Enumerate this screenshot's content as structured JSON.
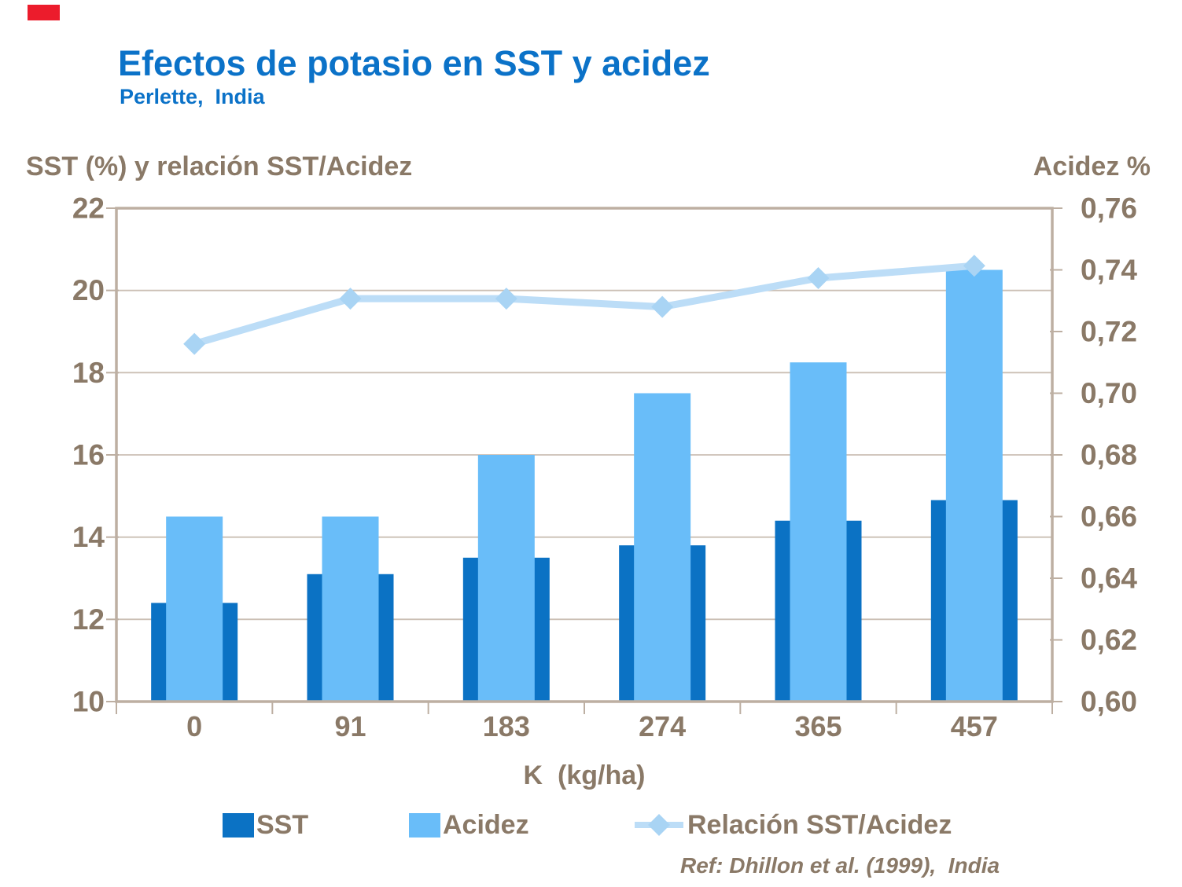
{
  "page": {
    "title": "Efectos de potasio en SST y acidez",
    "subtitle": "Perlette,  India",
    "footer": "Ref: Dhillon et al. (1999),  India"
  },
  "colors": {
    "title_blue": "#0B72C8",
    "sst_bar": "#0B72C4",
    "acidez_bar": "#69BDF9",
    "ratio_line": "#BCDDF7",
    "ratio_marker": "#A9D4F4",
    "axis_text": "#8A7967",
    "plot_border": "#BDAFA2",
    "gridline": "#CBBFB4",
    "red_mark": "#EC1C2C"
  },
  "chart_data": {
    "type": "bar",
    "subtype": "combo-bar-line-dual-axis",
    "title": "Efectos de potasio en SST y acidez",
    "categories": [
      "0",
      "91",
      "183",
      "274",
      "365",
      "457"
    ],
    "x_axis": {
      "title": "K  (kg/ha)",
      "labels": [
        "0",
        "91",
        "183",
        "274",
        "365",
        "457"
      ]
    },
    "left_axis": {
      "title": "SST (%) y relación SST/Acidez",
      "min": 10,
      "max": 22,
      "step": 2,
      "ticks": [
        {
          "label": "22",
          "value": 22
        },
        {
          "label": "20",
          "value": 20
        },
        {
          "label": "18",
          "value": 18
        },
        {
          "label": "16",
          "value": 16
        },
        {
          "label": "14",
          "value": 14
        },
        {
          "label": "12",
          "value": 12
        },
        {
          "label": "10",
          "value": 10
        }
      ]
    },
    "right_axis": {
      "title": "Acidez %",
      "min": 0.6,
      "max": 0.76,
      "step": 0.02,
      "ticks": [
        {
          "label": "0,76",
          "value": 0.76
        },
        {
          "label": "0,74",
          "value": 0.74
        },
        {
          "label": "0,72",
          "value": 0.72
        },
        {
          "label": "0,70",
          "value": 0.7
        },
        {
          "label": "0,68",
          "value": 0.68
        },
        {
          "label": "0,66",
          "value": 0.66
        },
        {
          "label": "0,64",
          "value": 0.64
        },
        {
          "label": "0,62",
          "value": 0.62
        },
        {
          "label": "0,60",
          "value": 0.6
        }
      ]
    },
    "series": [
      {
        "name": "SST",
        "type": "bar",
        "axis": "left",
        "color": "#0B72C4",
        "values": [
          12.4,
          13.1,
          13.5,
          13.8,
          14.4,
          14.9
        ]
      },
      {
        "name": "Acidez",
        "type": "bar",
        "axis": "right",
        "color": "#69BDF9",
        "values": [
          0.66,
          0.66,
          0.68,
          0.7,
          0.71,
          0.74
        ]
      },
      {
        "name": "Relación SST/Acidez",
        "type": "line",
        "axis": "left",
        "color": "#BCDDF7",
        "marker_color": "#A9D4F4",
        "marker": "diamond",
        "values": [
          18.7,
          19.8,
          19.8,
          19.6,
          20.3,
          20.6
        ]
      }
    ],
    "legend": {
      "position": "bottom",
      "items": [
        "SST",
        "Acidez",
        "Relación SST/Acidez"
      ]
    },
    "grid": "horizontal-major",
    "ref_note": "Ref: Dhillon et al. (1999),  India"
  }
}
